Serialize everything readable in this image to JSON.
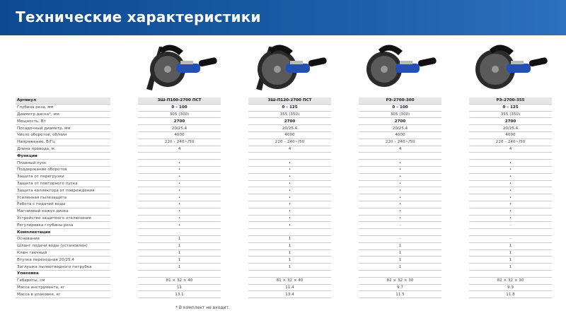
{
  "title": "Технические характеристики",
  "columns": [
    "ЗШ-П100-2700 ПСТ",
    "ЗШ-П120-2700 ПСТ",
    "РЭ-2700-300",
    "РЭ-2700-355"
  ],
  "header_label": "Артикул",
  "rows": [
    {
      "label": "Глубина реза, мм",
      "values": [
        "0 – 100",
        "0 – 125",
        "0 – 100",
        "0 – 125"
      ],
      "bold": true
    },
    {
      "label": "Диаметр диска*, мм",
      "values": [
        "305 (300)",
        "355 (350)",
        "305 (300)",
        "355 (350)"
      ]
    },
    {
      "label": "Мощность, Вт",
      "values": [
        "2700",
        "2700",
        "2700",
        "2700"
      ],
      "bold": true
    },
    {
      "label": "Посадочный диаметр, мм",
      "values": [
        "20/25.4",
        "20/25.4",
        "20/25.4",
        "20/25.4"
      ]
    },
    {
      "label": "Число оборотов, об/мин",
      "values": [
        "4000",
        "4000",
        "4000",
        "4000"
      ]
    },
    {
      "label": "Напряжение, В/Гц",
      "values": [
        "220 – 240~/50",
        "220 – 240~/50",
        "220 – 240~/50",
        "220 – 240~/50"
      ]
    },
    {
      "label": "Длина провода, м",
      "values": [
        "4",
        "4",
        "4",
        "4"
      ]
    },
    {
      "label": "Функции",
      "values": [
        "",
        "",
        "",
        ""
      ],
      "section": true
    },
    {
      "label": "Плавный пуск",
      "values": [
        "•",
        "•",
        "•",
        "•"
      ]
    },
    {
      "label": "Поддержание оборотов",
      "values": [
        "•",
        "•",
        "•",
        "•"
      ]
    },
    {
      "label": "Защита от перегрузки",
      "values": [
        "•",
        "•",
        "•",
        "•"
      ]
    },
    {
      "label": "Защита от повторного пуска",
      "values": [
        "•",
        "•",
        "•",
        "•"
      ]
    },
    {
      "label": "Защита коллектора от повреждения",
      "values": [
        "•",
        "•",
        "•",
        "•"
      ]
    },
    {
      "label": "Усиленная пылезащита",
      "values": [
        "•",
        "•",
        "•",
        "•"
      ]
    },
    {
      "label": "Работа с подачей воды",
      "values": [
        "•",
        "•",
        "•",
        "•"
      ]
    },
    {
      "label": "Магниевый кожух диска",
      "values": [
        "•",
        "•",
        "•",
        "•"
      ]
    },
    {
      "label": "Устройство защитного отключения",
      "values": [
        "•",
        "•",
        "•",
        "•"
      ]
    },
    {
      "label": "Регулировка глубины реза",
      "values": [
        "•",
        "•",
        "-",
        "-"
      ]
    },
    {
      "label": "Комплектация",
      "values": [
        "",
        "",
        "",
        ""
      ],
      "section": true
    },
    {
      "label": "Основание",
      "values": [
        "1",
        "1",
        "-",
        "-"
      ]
    },
    {
      "label": "Шланг подачи воды (установлен)",
      "values": [
        "1",
        "1",
        "1",
        "1"
      ]
    },
    {
      "label": "Ключ гаечный",
      "values": [
        "1",
        "1",
        "1",
        "1"
      ]
    },
    {
      "label": "Втулка переходная 20/25.4",
      "values": [
        "1",
        "1",
        "1",
        "1"
      ]
    },
    {
      "label": "Заглушка пылеотводного патрубка",
      "values": [
        "1",
        "1",
        "1",
        "1"
      ]
    },
    {
      "label": "Упаковка",
      "values": [
        "",
        "",
        "",
        ""
      ],
      "section": true
    },
    {
      "label": "Габариты, см",
      "values": [
        "81 × 32 × 40",
        "81 × 32 × 40",
        "82 × 32 × 30",
        "82 × 32 × 30"
      ]
    },
    {
      "label": "Масса инструмента, кг",
      "values": [
        "11",
        "11.4",
        "9.7",
        "9.9"
      ]
    },
    {
      "label": "Масса в упаковке, кг",
      "values": [
        "13.1",
        "13.4",
        "11.5",
        "11.8"
      ]
    }
  ],
  "footnote": "* В комплект не входит.",
  "colors": {
    "banner": "#1a5fa8",
    "tool_blue": "#2350b5",
    "tool_black": "#1a1a1a"
  }
}
